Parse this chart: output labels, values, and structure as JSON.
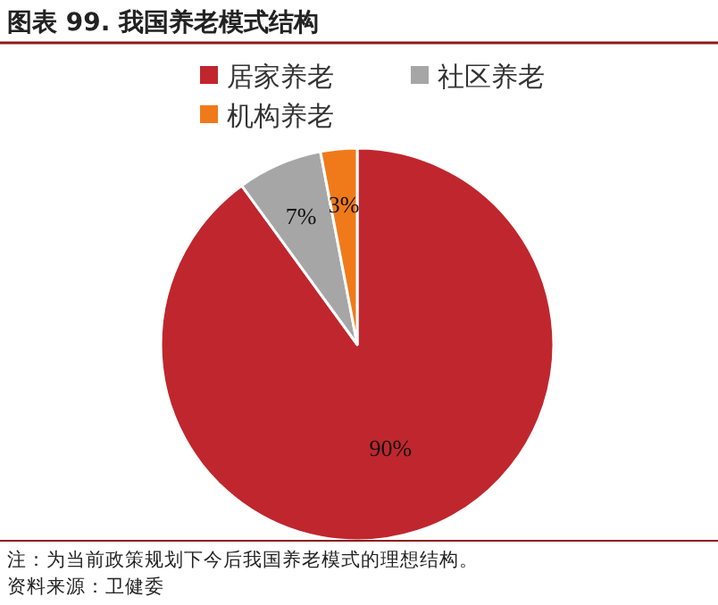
{
  "chart_data": {
    "type": "pie",
    "title": "图表 99. 我国养老模式结构",
    "categories": [
      "居家养老",
      "社区养老",
      "机构养老"
    ],
    "values": [
      90,
      7,
      3
    ],
    "colors": [
      "#c0262d",
      "#a6a6a6",
      "#f07a1a"
    ],
    "value_labels": [
      "90%",
      "7%",
      "3%"
    ],
    "legend": "top",
    "annotations": [
      "注：为当前政策规划下今后我国养老模式的理想结构。",
      "资料来源：卫健委"
    ]
  }
}
